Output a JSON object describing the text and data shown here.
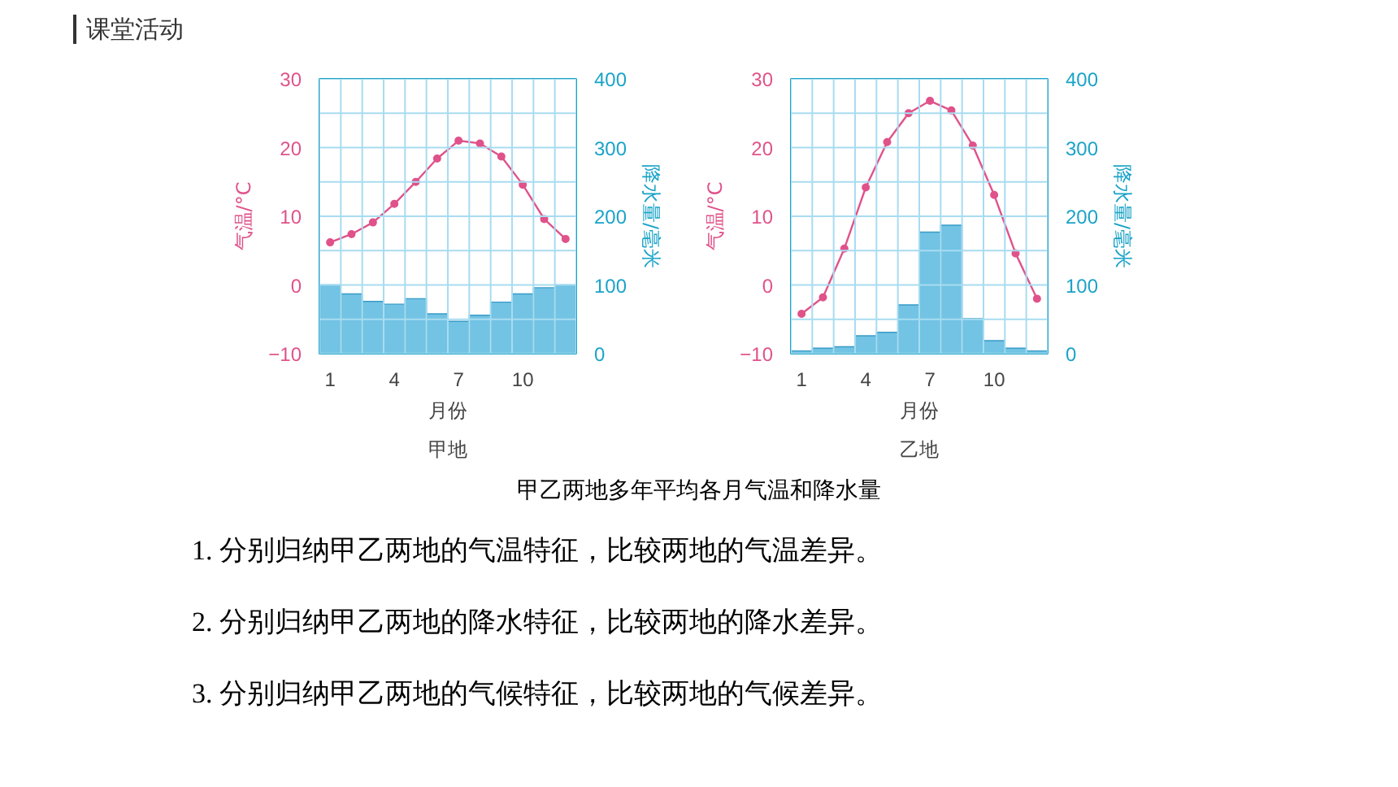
{
  "chart_data": [
    {
      "type": "bar",
      "subtitle": "甲地",
      "xlabel": "月份",
      "ylabel": "气温/°C",
      "y2label": "降水量/毫米",
      "annotations": [
        "课堂活动"
      ],
      "x": [
        1,
        2,
        3,
        4,
        5,
        6,
        7,
        8,
        9,
        10,
        11,
        12
      ],
      "xlim": [
        0.5,
        12.5
      ],
      "xticks": [
        1,
        4,
        7,
        10
      ],
      "ylim": [
        -10,
        30
      ],
      "yticks": [
        -10,
        0,
        10,
        20,
        30
      ],
      "y2lim": [
        0,
        400
      ],
      "y2ticks": [
        0,
        100,
        200,
        300,
        400
      ],
      "grid": true,
      "series": [
        {
          "axis": "y2",
          "color": "#72c3e4",
          "values": [
            100,
            87,
            76,
            72,
            80,
            58,
            47,
            56,
            75,
            87,
            96,
            100
          ]
        },
        {
          "type": "line",
          "axis": "y",
          "color": "#e0528a",
          "marker": "circle",
          "values": [
            6.2,
            7.4,
            9.1,
            11.8,
            15,
            18.4,
            21,
            20.6,
            18.7,
            14.6,
            9.6,
            6.7
          ]
        }
      ]
    },
    {
      "type": "bar",
      "subtitle": "乙地",
      "xlabel": "月份",
      "ylabel": "气温/°C",
      "y2label": "降水量/毫米",
      "annotations": [
        "甲乙两地多年平均各月气温和降水量",
        "1. 分别归纳甲乙两地的气温特征，比较两地的气温差异。",
        "2. 分别归纳甲乙两地的降水特征，比较两地的降水差异。",
        "3. 分别归纳甲乙两地的气候特征，比较两地的气候差异。"
      ],
      "x": [
        1,
        2,
        3,
        4,
        5,
        6,
        7,
        8,
        9,
        10,
        11,
        12
      ],
      "xlim": [
        0.5,
        12.5
      ],
      "xticks": [
        1,
        4,
        7,
        10
      ],
      "ylim": [
        -10,
        30
      ],
      "yticks": [
        -10,
        0,
        10,
        20,
        30
      ],
      "y2lim": [
        0,
        400
      ],
      "y2ticks": [
        0,
        100,
        200,
        300,
        400
      ],
      "grid": true,
      "series": [
        {
          "axis": "y2",
          "color": "#72c3e4",
          "values": [
            4,
            8,
            10,
            26,
            31,
            71,
            177,
            187,
            51,
            19,
            8,
            4
          ]
        },
        {
          "type": "line",
          "axis": "y",
          "color": "#e0528a",
          "marker": "circle",
          "values": [
            -4.2,
            -1.8,
            5.3,
            14.2,
            20.8,
            25,
            26.8,
            25.4,
            20.3,
            13.1,
            4.6,
            -2
          ]
        }
      ]
    }
  ]
}
